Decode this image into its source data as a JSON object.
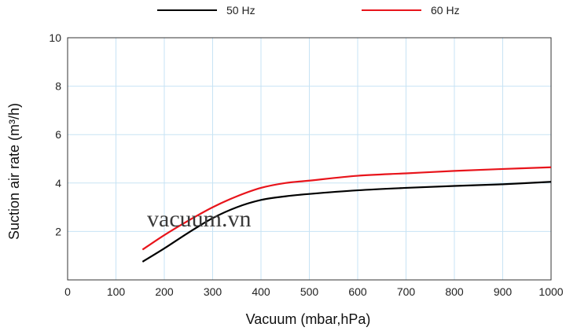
{
  "chart_data": {
    "type": "line",
    "xlabel": "Vacuum (mbar,hPa)",
    "ylabel": "Suction air rate (m³/h)",
    "xlim": [
      0,
      1000
    ],
    "ylim": [
      0,
      10
    ],
    "x_ticks": [
      "0",
      "100",
      "200",
      "300",
      "400",
      "500",
      "600",
      "700",
      "800",
      "900",
      "1000"
    ],
    "y_ticks": [
      "2",
      "4",
      "6",
      "8",
      "10"
    ],
    "grid": true,
    "legend_position": "top",
    "series": [
      {
        "name": "50 Hz",
        "color": "#000000",
        "x": [
          155,
          200,
          250,
          300,
          350,
          400,
          450,
          500,
          600,
          700,
          800,
          900,
          1000
        ],
        "y": [
          0.75,
          1.3,
          1.95,
          2.55,
          3.0,
          3.3,
          3.45,
          3.55,
          3.7,
          3.8,
          3.88,
          3.95,
          4.05
        ]
      },
      {
        "name": "60 Hz",
        "color": "#e8141b",
        "x": [
          155,
          200,
          250,
          300,
          350,
          400,
          450,
          500,
          600,
          700,
          800,
          900,
          1000
        ],
        "y": [
          1.25,
          1.85,
          2.45,
          3.0,
          3.45,
          3.8,
          4.0,
          4.1,
          4.3,
          4.4,
          4.5,
          4.58,
          4.65
        ]
      }
    ]
  },
  "legend": {
    "label_50": "50 Hz",
    "label_60": "60 Hz",
    "color_50": "#000000",
    "color_60": "#e8141b"
  },
  "watermark": "vacuum.vn"
}
